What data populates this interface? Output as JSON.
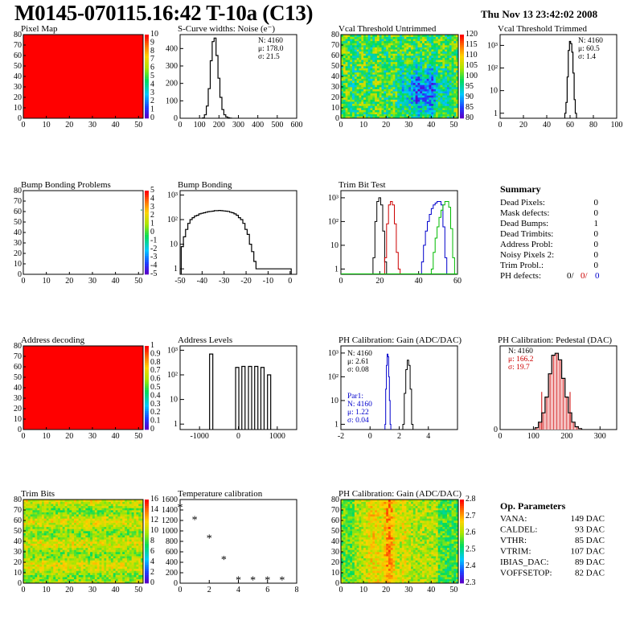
{
  "title": "M0145-070115.16:42 T-10a (C13)",
  "date": "Thu Nov 13 23:42:02 2008",
  "colors": {
    "red": "#ff0000",
    "trim_red": "#cc0000",
    "trim_green": "#00bb00",
    "trim_blue": "#0000cc",
    "gain_blue": "#0000cc"
  },
  "summary": {
    "heading": "Summary",
    "rows": [
      {
        "label": "Dead Pixels:",
        "value": "0"
      },
      {
        "label": "Mask defects:",
        "value": "0"
      },
      {
        "label": "Dead Bumps:",
        "value": "1"
      },
      {
        "label": "Dead Trimbits:",
        "value": "0"
      },
      {
        "label": "Address Probl:",
        "value": "0"
      },
      {
        "label": "Noisy Pixels 2:",
        "value": "0"
      },
      {
        "label": "Trim Probl.:",
        "value": "0"
      }
    ],
    "ph_label": "PH defects:",
    "ph_values": [
      "0/",
      "0/",
      "0"
    ]
  },
  "op_params": {
    "heading": "Op. Parameters",
    "rows": [
      {
        "label": "VANA:",
        "value": "149 DAC"
      },
      {
        "label": "CALDEL:",
        "value": "93 DAC"
      },
      {
        "label": "VTHR:",
        "value": "85 DAC"
      },
      {
        "label": "VTRIM:",
        "value": "107 DAC"
      },
      {
        "label": "IBIAS_DAC:",
        "value": "89 DAC"
      },
      {
        "label": "VOFFSETOP:",
        "value": "82 DAC"
      }
    ]
  },
  "chart_data": [
    {
      "id": "pixel_map",
      "type": "heatmap",
      "title": "Pixel Map",
      "xlim": [
        0,
        52
      ],
      "ylim": [
        0,
        80
      ],
      "xticks": [
        "0",
        "10",
        "20",
        "30",
        "40",
        "50"
      ],
      "yticks": [
        "0",
        "10",
        "20",
        "30",
        "40",
        "50",
        "60",
        "70",
        "80"
      ],
      "zticks": [
        "0",
        "1",
        "2",
        "3",
        "4",
        "5",
        "6",
        "7",
        "8",
        "9",
        "10"
      ],
      "fill": "uniform",
      "value": 10
    },
    {
      "id": "scurve",
      "type": "histogram",
      "title": "S-Curve widths: Noise (e⁻)",
      "xlim": [
        0,
        600
      ],
      "ylim": [
        0,
        480
      ],
      "xticks": [
        "0",
        "100",
        "200",
        "300",
        "400",
        "500",
        "600"
      ],
      "yticks": [
        "0",
        "100",
        "200",
        "300",
        "400"
      ],
      "stats": [
        "N: 4160",
        "μ: 178.0",
        "σ: 21.5"
      ],
      "x": [
        120,
        130,
        140,
        150,
        160,
        170,
        180,
        190,
        200,
        210,
        220,
        230,
        240,
        250,
        260
      ],
      "y": [
        2,
        20,
        70,
        170,
        330,
        440,
        460,
        360,
        230,
        120,
        50,
        20,
        8,
        3,
        1
      ]
    },
    {
      "id": "vcal_untrimmed",
      "type": "heatmap",
      "title": "Vcal Threshold Untrimmed",
      "xlim": [
        0,
        52
      ],
      "ylim": [
        0,
        80
      ],
      "xticks": [
        "0",
        "10",
        "20",
        "30",
        "40",
        "50"
      ],
      "yticks": [
        "0",
        "10",
        "20",
        "30",
        "40",
        "50",
        "60",
        "70",
        "80"
      ],
      "zticks": [
        "80",
        "85",
        "90",
        "95",
        "100",
        "105",
        "110",
        "115",
        "120"
      ],
      "fill": "noise",
      "z_range": [
        80,
        120
      ]
    },
    {
      "id": "vcal_trimmed",
      "type": "histogram",
      "log": true,
      "title": "Vcal Threshold Trimmed",
      "xlim": [
        0,
        100
      ],
      "ylim": [
        0.6,
        3000
      ],
      "xticks": [
        "0",
        "20",
        "40",
        "60",
        "80",
        "100"
      ],
      "yticks": [
        "1",
        "10",
        "10²",
        "10³"
      ],
      "stats": [
        "N: 4160",
        "μ: 60.5",
        "σ:  1.4"
      ],
      "x": [
        56,
        57,
        58,
        59,
        60,
        61,
        62,
        63,
        64,
        65
      ],
      "y": [
        1,
        3,
        40,
        600,
        1500,
        1200,
        500,
        60,
        4,
        1
      ]
    },
    {
      "id": "bump_map",
      "type": "heatmap",
      "title": "Bump Bonding Problems",
      "xlim": [
        0,
        52
      ],
      "ylim": [
        0,
        80
      ],
      "xticks": [
        "0",
        "10",
        "20",
        "30",
        "40",
        "50"
      ],
      "yticks": [
        "0",
        "10",
        "20",
        "30",
        "40",
        "50",
        "60",
        "70",
        "80"
      ],
      "zticks": [
        "-5",
        "-4",
        "-3",
        "-2",
        "-1",
        "0",
        "1",
        "2",
        "3",
        "4",
        "5"
      ],
      "fill": "empty"
    },
    {
      "id": "bump_hist",
      "type": "histogram",
      "log": true,
      "title": "Bump Bonding",
      "xlim": [
        -50,
        3
      ],
      "ylim": [
        0.6,
        1500
      ],
      "xticks": [
        "-50",
        "-40",
        "-30",
        "-20",
        "-10",
        "0"
      ],
      "yticks": [
        "1",
        "10",
        "10²",
        "10³"
      ],
      "x": [
        -49,
        -48,
        -47,
        -46,
        -45,
        -44,
        -43,
        -42,
        -41,
        -40,
        -39,
        -38,
        -37,
        -36,
        -35,
        -34,
        -33,
        -32,
        -31,
        -30,
        -29,
        -28,
        -27,
        -26,
        -25,
        -24,
        -23,
        -22,
        -21,
        -20,
        -19,
        -18,
        -17,
        -16,
        -15,
        0
      ],
      "y": [
        8,
        20,
        40,
        70,
        100,
        120,
        140,
        150,
        170,
        180,
        190,
        200,
        210,
        215,
        220,
        230,
        230,
        235,
        230,
        225,
        220,
        215,
        200,
        190,
        170,
        150,
        120,
        100,
        70,
        40,
        25,
        10,
        5,
        2,
        1,
        1
      ]
    },
    {
      "id": "trim_bit",
      "type": "histogram",
      "log": true,
      "title": "Trim Bit Test",
      "xlim": [
        0,
        60
      ],
      "ylim": [
        0.6,
        2000
      ],
      "xticks": [
        "0",
        "20",
        "40",
        "60"
      ],
      "yticks": [
        "1",
        "10",
        "10²",
        "10³"
      ],
      "series": [
        {
          "color": "#000000",
          "x": [
            17,
            18,
            19,
            20,
            21,
            22,
            23
          ],
          "y": [
            3,
            100,
            700,
            1000,
            500,
            40,
            2
          ]
        },
        {
          "color": "#cc0000",
          "x": [
            23,
            24,
            25,
            26,
            27,
            28,
            29,
            30
          ],
          "y": [
            3,
            80,
            500,
            700,
            500,
            80,
            5,
            1
          ]
        },
        {
          "color": "#0000cc",
          "x": [
            42,
            43,
            44,
            45,
            46,
            47,
            48,
            49,
            50,
            51,
            52,
            53,
            54
          ],
          "y": [
            2,
            10,
            40,
            100,
            200,
            350,
            500,
            600,
            700,
            700,
            500,
            60,
            3
          ]
        },
        {
          "color": "#00bb00",
          "x": [
            47,
            48,
            49,
            50,
            51,
            52,
            53,
            54,
            55,
            56,
            57,
            58
          ],
          "y": [
            1,
            5,
            20,
            60,
            150,
            300,
            500,
            700,
            700,
            400,
            50,
            3
          ]
        }
      ]
    },
    {
      "id": "addr_map",
      "type": "heatmap",
      "title": "Address decoding",
      "xlim": [
        0,
        52
      ],
      "ylim": [
        0,
        80
      ],
      "xticks": [
        "0",
        "10",
        "20",
        "30",
        "40",
        "50"
      ],
      "yticks": [
        "0",
        "10",
        "20",
        "30",
        "40",
        "50",
        "60",
        "70",
        "80"
      ],
      "zticks": [
        "0",
        "0.1",
        "0.2",
        "0.3",
        "0.4",
        "0.5",
        "0.6",
        "0.7",
        "0.8",
        "0.9",
        "1"
      ],
      "fill": "uniform",
      "value": 1
    },
    {
      "id": "addr_levels",
      "type": "histogram",
      "log": true,
      "title": "Address Levels",
      "xlim": [
        -1500,
        1500
      ],
      "ylim": [
        0.6,
        1500
      ],
      "xticks": [
        "-1000",
        "0",
        "1000"
      ],
      "yticks": [
        "1",
        "10",
        "10²",
        "10³"
      ],
      "peaks": [
        {
          "x": -700,
          "h": 700
        },
        {
          "x": -30,
          "h": 200
        },
        {
          "x": 130,
          "h": 220
        },
        {
          "x": 300,
          "h": 220
        },
        {
          "x": 460,
          "h": 220
        },
        {
          "x": 620,
          "h": 200
        },
        {
          "x": 790,
          "h": 100
        }
      ]
    },
    {
      "id": "ph_gain",
      "type": "histogram",
      "log": true,
      "title": "PH Calibration: Gain (ADC/DAC)",
      "xlim": [
        -2,
        6
      ],
      "ylim": [
        0.6,
        2000
      ],
      "xticks": [
        "-2",
        "0",
        "2",
        "4"
      ],
      "yticks": [
        "1",
        "10",
        "10²",
        "10³"
      ],
      "stats": [
        "N: 4160",
        "μ: 2.61",
        "σ: 0.08"
      ],
      "stats2": [
        "Par1:",
        "N: 4160",
        "μ: 1.22",
        "σ: 0.04"
      ],
      "series": [
        {
          "color": "#000000",
          "x": [
            2.3,
            2.4,
            2.5,
            2.6,
            2.7,
            2.8,
            2.9
          ],
          "y": [
            1,
            20,
            200,
            500,
            300,
            30,
            1
          ]
        },
        {
          "color": "#0000cc",
          "x": [
            1.05,
            1.1,
            1.15,
            1.2,
            1.25,
            1.3,
            1.35,
            1.4
          ],
          "y": [
            1,
            30,
            300,
            900,
            700,
            100,
            10,
            1
          ]
        }
      ]
    },
    {
      "id": "ph_ped",
      "type": "histogram",
      "title": "PH Calibration: Pedestal (DAC)",
      "xlim": [
        0,
        350
      ],
      "ylim": [
        0,
        90
      ],
      "xticks": [
        "0",
        "100",
        "200",
        "300"
      ],
      "yticks": [
        "0"
      ],
      "stats": [
        "N: 4160",
        "μ: 166.2",
        "σ: 19.7"
      ],
      "x": [
        110,
        120,
        130,
        140,
        150,
        160,
        170,
        180,
        190,
        200,
        210,
        220,
        230,
        240
      ],
      "y": [
        2,
        8,
        18,
        35,
        60,
        80,
        82,
        75,
        55,
        35,
        18,
        8,
        3,
        1
      ],
      "cut_lines": [
        125,
        210
      ]
    },
    {
      "id": "trim_bits",
      "type": "heatmap",
      "title": "Trim Bits",
      "xlim": [
        0,
        52
      ],
      "ylim": [
        0,
        80
      ],
      "xticks": [
        "0",
        "10",
        "20",
        "30",
        "40",
        "50"
      ],
      "yticks": [
        "0",
        "10",
        "20",
        "30",
        "40",
        "50",
        "60",
        "70",
        "80"
      ],
      "zticks": [
        "0",
        "2",
        "4",
        "6",
        "8",
        "10",
        "12",
        "14",
        "16"
      ],
      "fill": "noise",
      "z_range": [
        0,
        16
      ]
    },
    {
      "id": "temperature",
      "type": "scatter",
      "title": "Temperature calibration",
      "xlim": [
        0,
        8
      ],
      "ylim": [
        0,
        1600
      ],
      "xticks": [
        "0",
        "2",
        "4",
        "6",
        "8"
      ],
      "yticks": [
        "0",
        "200",
        "400",
        "600",
        "800",
        "1000",
        "1200",
        "1400",
        "1600"
      ],
      "x": [
        0,
        1,
        2,
        3,
        4,
        5,
        6,
        7
      ],
      "y": [
        1460,
        1220,
        870,
        460,
        70,
        70,
        70,
        70
      ]
    },
    {
      "id": "ph_gain_map",
      "type": "heatmap",
      "title": "PH Calibration: Gain (ADC/DAC)",
      "xlim": [
        0,
        52
      ],
      "ylim": [
        0,
        80
      ],
      "xticks": [
        "0",
        "10",
        "20",
        "30",
        "40",
        "50"
      ],
      "yticks": [
        "0",
        "10",
        "20",
        "30",
        "40",
        "50",
        "60",
        "70",
        "80"
      ],
      "zticks": [
        "2.3",
        "2.4",
        "2.5",
        "2.6",
        "2.7",
        "2.8"
      ],
      "fill": "noise",
      "z_range": [
        2.3,
        2.8
      ]
    }
  ]
}
